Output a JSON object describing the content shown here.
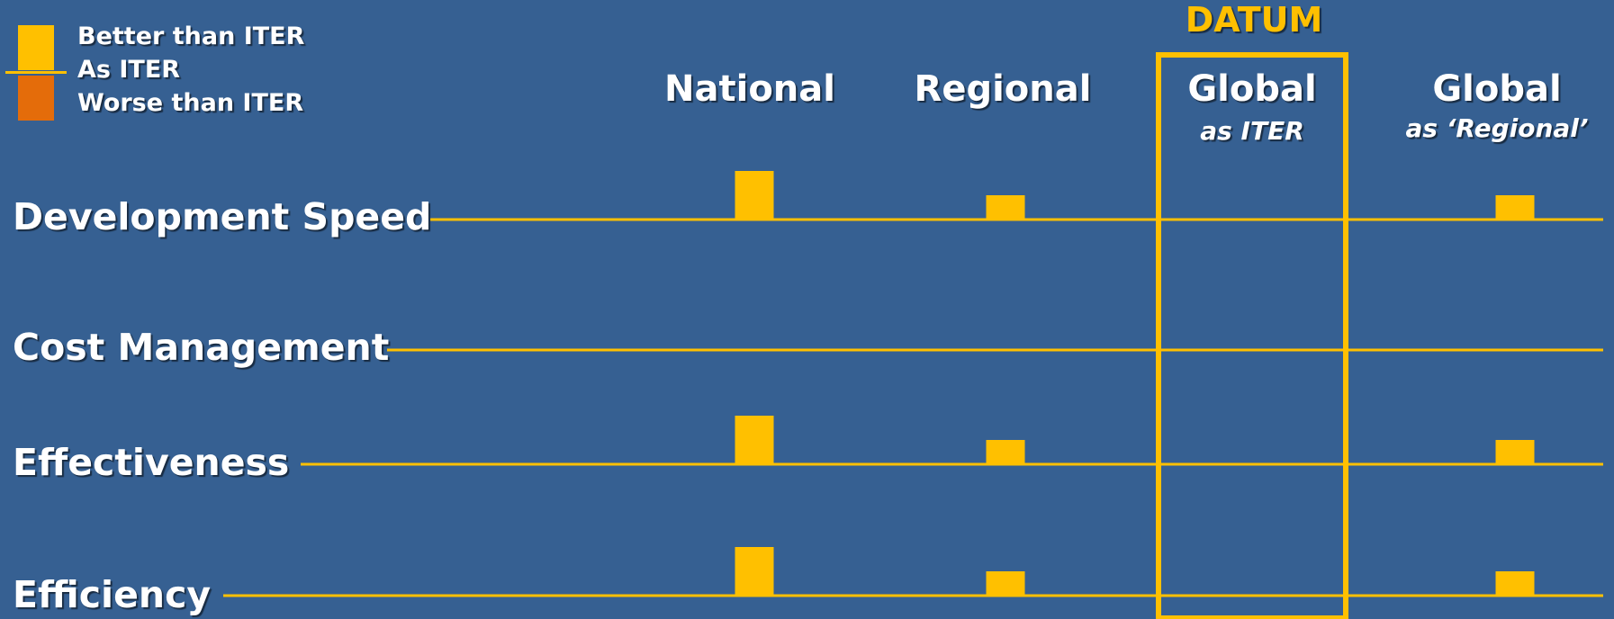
{
  "legend": {
    "items": [
      {
        "label": "Better than ITER",
        "color": "#ffc000"
      },
      {
        "label": "As ITER",
        "color": "#ffc000"
      },
      {
        "label": "Worse than ITER",
        "color": "#e46c0a"
      }
    ]
  },
  "chart_data": {
    "type": "bar",
    "datum_label": "DATUM",
    "columns": [
      {
        "title": "National",
        "subtitle": ""
      },
      {
        "title": "Regional",
        "subtitle": ""
      },
      {
        "title": "Global",
        "subtitle": "as ITER"
      },
      {
        "title": "Global",
        "subtitle": "as ‘Regional’"
      }
    ],
    "datum_column": 2,
    "rows": [
      {
        "label": "Development Speed",
        "values": [
          2,
          1,
          0,
          1
        ]
      },
      {
        "label": "Cost Management",
        "values": [
          0,
          0,
          0,
          0
        ]
      },
      {
        "label": "Effectiveness",
        "values": [
          2,
          1,
          0,
          1
        ]
      },
      {
        "label": "Efficiency",
        "values": [
          2,
          1,
          0,
          1
        ]
      }
    ],
    "value_meaning": {
      "positive": "Better than ITER",
      "zero": "As ITER",
      "negative": "Worse than ITER"
    },
    "colors": {
      "background": "#366092",
      "accent": "#ffc000",
      "worse": "#e46c0a",
      "text": "#ffffff"
    }
  }
}
